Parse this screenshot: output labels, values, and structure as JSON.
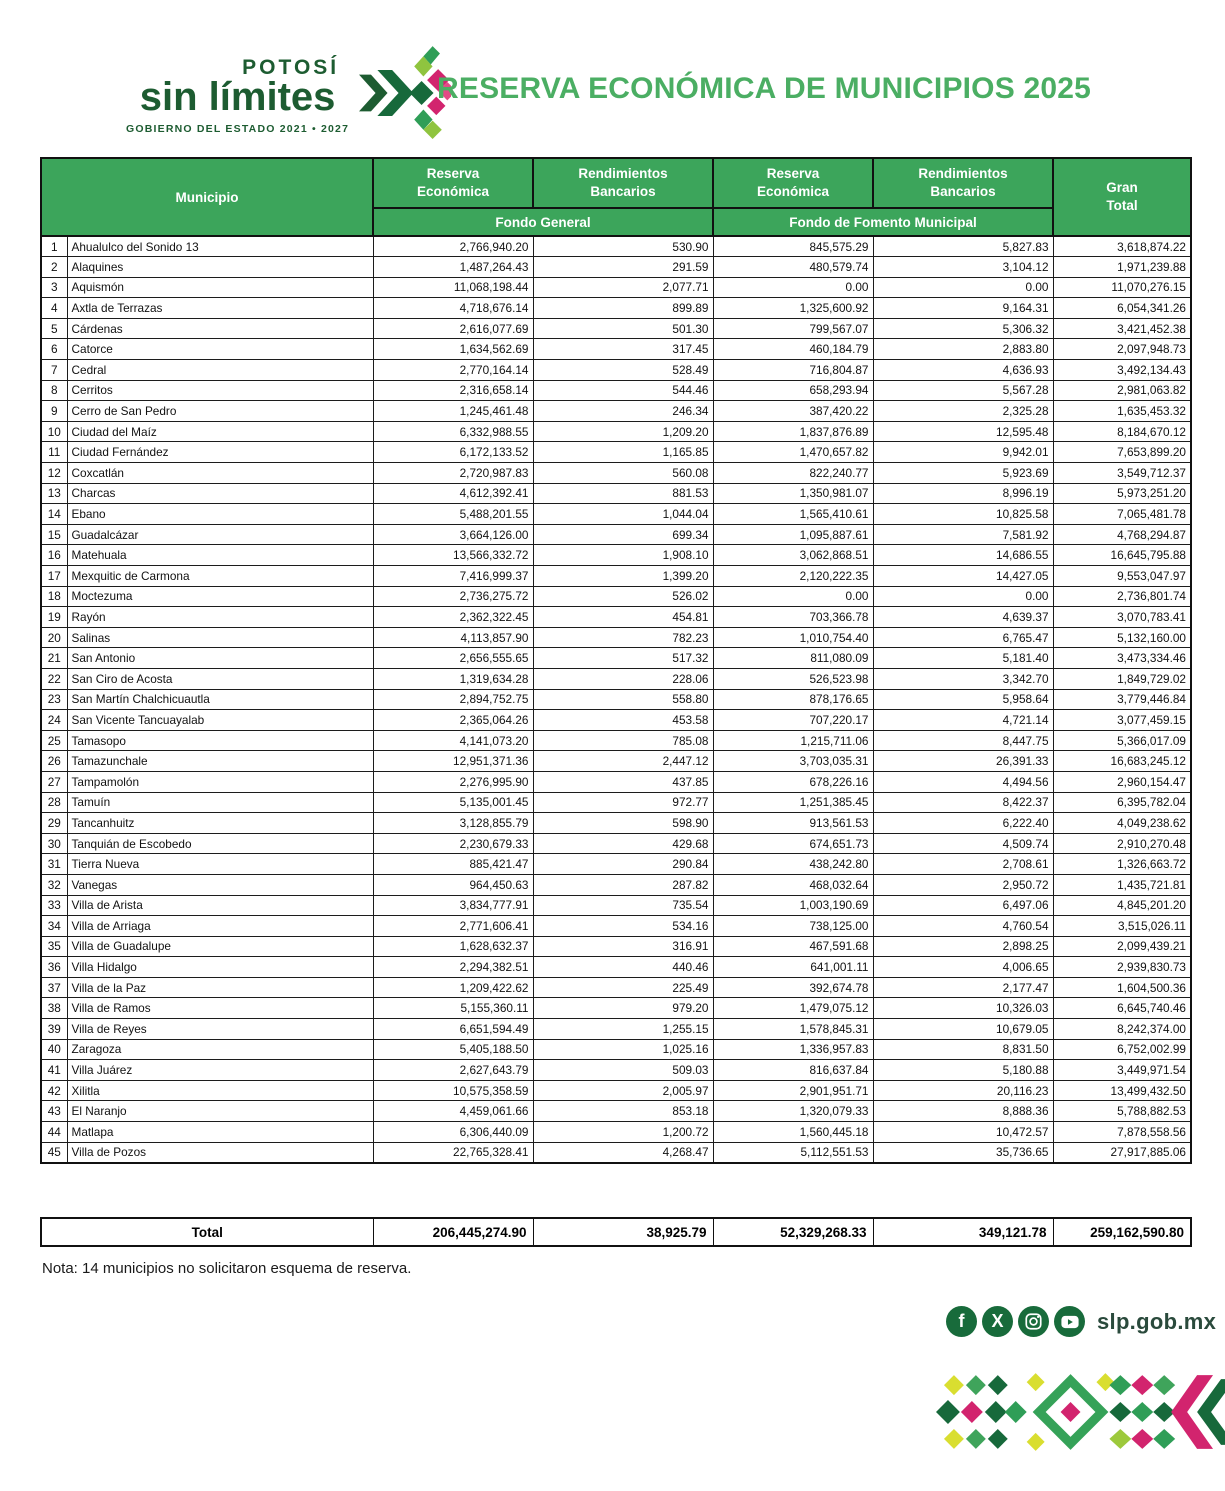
{
  "header": {
    "logo": {
      "line1": "POTOSÍ",
      "line2": "sin límites",
      "line3": "GOBIERNO DEL ESTADO 2021 • 2027"
    },
    "title": "RESERVA ECONÓMICA DE MUNICIPIOS 2025"
  },
  "table": {
    "headers": {
      "municipio": "Municipio",
      "reserva": [
        "Reserva",
        "Económica"
      ],
      "rendimientos": [
        "Rendimientos",
        "Bancarios"
      ],
      "gran_total": [
        "Gran",
        "Total"
      ],
      "fondo_general": "Fondo General",
      "fondo_fomento": "Fondo de Fomento Municipal"
    },
    "rows": [
      {
        "n": "1",
        "municipio": "Ahualulco del Sonido 13",
        "valores": [
          "2,766,940.20",
          "530.90",
          "845,575.29",
          "5,827.83",
          "3,618,874.22"
        ]
      },
      {
        "n": "2",
        "municipio": "Alaquines",
        "valores": [
          "1,487,264.43",
          "291.59",
          "480,579.74",
          "3,104.12",
          "1,971,239.88"
        ]
      },
      {
        "n": "3",
        "municipio": "Aquismón",
        "valores": [
          "11,068,198.44",
          "2,077.71",
          "0.00",
          "0.00",
          "11,070,276.15"
        ]
      },
      {
        "n": "4",
        "municipio": "Axtla de Terrazas",
        "valores": [
          "4,718,676.14",
          "899.89",
          "1,325,600.92",
          "9,164.31",
          "6,054,341.26"
        ]
      },
      {
        "n": "5",
        "municipio": "Cárdenas",
        "valores": [
          "2,616,077.69",
          "501.30",
          "799,567.07",
          "5,306.32",
          "3,421,452.38"
        ]
      },
      {
        "n": "6",
        "municipio": "Catorce",
        "valores": [
          "1,634,562.69",
          "317.45",
          "460,184.79",
          "2,883.80",
          "2,097,948.73"
        ]
      },
      {
        "n": "7",
        "municipio": "Cedral",
        "valores": [
          "2,770,164.14",
          "528.49",
          "716,804.87",
          "4,636.93",
          "3,492,134.43"
        ]
      },
      {
        "n": "8",
        "municipio": "Cerritos",
        "valores": [
          "2,316,658.14",
          "544.46",
          "658,293.94",
          "5,567.28",
          "2,981,063.82"
        ]
      },
      {
        "n": "9",
        "municipio": "Cerro de San Pedro",
        "valores": [
          "1,245,461.48",
          "246.34",
          "387,420.22",
          "2,325.28",
          "1,635,453.32"
        ]
      },
      {
        "n": "10",
        "municipio": "Ciudad del Maíz",
        "valores": [
          "6,332,988.55",
          "1,209.20",
          "1,837,876.89",
          "12,595.48",
          "8,184,670.12"
        ]
      },
      {
        "n": "11",
        "municipio": "Ciudad Fernández",
        "valores": [
          "6,172,133.52",
          "1,165.85",
          "1,470,657.82",
          "9,942.01",
          "7,653,899.20"
        ]
      },
      {
        "n": "12",
        "municipio": "Coxcatlán",
        "valores": [
          "2,720,987.83",
          "560.08",
          "822,240.77",
          "5,923.69",
          "3,549,712.37"
        ]
      },
      {
        "n": "13",
        "municipio": "Charcas",
        "valores": [
          "4,612,392.41",
          "881.53",
          "1,350,981.07",
          "8,996.19",
          "5,973,251.20"
        ]
      },
      {
        "n": "14",
        "municipio": "Ebano",
        "valores": [
          "5,488,201.55",
          "1,044.04",
          "1,565,410.61",
          "10,825.58",
          "7,065,481.78"
        ]
      },
      {
        "n": "15",
        "municipio": "Guadalcázar",
        "valores": [
          "3,664,126.00",
          "699.34",
          "1,095,887.61",
          "7,581.92",
          "4,768,294.87"
        ]
      },
      {
        "n": "16",
        "municipio": "Matehuala",
        "valores": [
          "13,566,332.72",
          "1,908.10",
          "3,062,868.51",
          "14,686.55",
          "16,645,795.88"
        ]
      },
      {
        "n": "17",
        "municipio": "Mexquitic de Carmona",
        "valores": [
          "7,416,999.37",
          "1,399.20",
          "2,120,222.35",
          "14,427.05",
          "9,553,047.97"
        ]
      },
      {
        "n": "18",
        "municipio": "Moctezuma",
        "valores": [
          "2,736,275.72",
          "526.02",
          "0.00",
          "0.00",
          "2,736,801.74"
        ]
      },
      {
        "n": "19",
        "municipio": "Rayón",
        "valores": [
          "2,362,322.45",
          "454.81",
          "703,366.78",
          "4,639.37",
          "3,070,783.41"
        ]
      },
      {
        "n": "20",
        "municipio": "Salinas",
        "valores": [
          "4,113,857.90",
          "782.23",
          "1,010,754.40",
          "6,765.47",
          "5,132,160.00"
        ]
      },
      {
        "n": "21",
        "municipio": "San Antonio",
        "valores": [
          "2,656,555.65",
          "517.32",
          "811,080.09",
          "5,181.40",
          "3,473,334.46"
        ]
      },
      {
        "n": "22",
        "municipio": "San Ciro de Acosta",
        "valores": [
          "1,319,634.28",
          "228.06",
          "526,523.98",
          "3,342.70",
          "1,849,729.02"
        ]
      },
      {
        "n": "23",
        "municipio": "San Martín Chalchicuautla",
        "valores": [
          "2,894,752.75",
          "558.80",
          "878,176.65",
          "5,958.64",
          "3,779,446.84"
        ]
      },
      {
        "n": "24",
        "municipio": "San Vicente Tancuayalab",
        "valores": [
          "2,365,064.26",
          "453.58",
          "707,220.17",
          "4,721.14",
          "3,077,459.15"
        ]
      },
      {
        "n": "25",
        "municipio": "Tamasopo",
        "valores": [
          "4,141,073.20",
          "785.08",
          "1,215,711.06",
          "8,447.75",
          "5,366,017.09"
        ]
      },
      {
        "n": "26",
        "municipio": "Tamazunchale",
        "valores": [
          "12,951,371.36",
          "2,447.12",
          "3,703,035.31",
          "26,391.33",
          "16,683,245.12"
        ]
      },
      {
        "n": "27",
        "municipio": "Tampamolón",
        "valores": [
          "2,276,995.90",
          "437.85",
          "678,226.16",
          "4,494.56",
          "2,960,154.47"
        ]
      },
      {
        "n": "28",
        "municipio": "Tamuín",
        "valores": [
          "5,135,001.45",
          "972.77",
          "1,251,385.45",
          "8,422.37",
          "6,395,782.04"
        ]
      },
      {
        "n": "29",
        "municipio": "Tancanhuitz",
        "valores": [
          "3,128,855.79",
          "598.90",
          "913,561.53",
          "6,222.40",
          "4,049,238.62"
        ]
      },
      {
        "n": "30",
        "municipio": "Tanquián de Escobedo",
        "valores": [
          "2,230,679.33",
          "429.68",
          "674,651.73",
          "4,509.74",
          "2,910,270.48"
        ]
      },
      {
        "n": "31",
        "municipio": "Tierra Nueva",
        "valores": [
          "885,421.47",
          "290.84",
          "438,242.80",
          "2,708.61",
          "1,326,663.72"
        ]
      },
      {
        "n": "32",
        "municipio": "Vanegas",
        "valores": [
          "964,450.63",
          "287.82",
          "468,032.64",
          "2,950.72",
          "1,435,721.81"
        ]
      },
      {
        "n": "33",
        "municipio": "Villa de Arista",
        "valores": [
          "3,834,777.91",
          "735.54",
          "1,003,190.69",
          "6,497.06",
          "4,845,201.20"
        ]
      },
      {
        "n": "34",
        "municipio": "Villa de Arriaga",
        "valores": [
          "2,771,606.41",
          "534.16",
          "738,125.00",
          "4,760.54",
          "3,515,026.11"
        ]
      },
      {
        "n": "35",
        "municipio": "Villa de Guadalupe",
        "valores": [
          "1,628,632.37",
          "316.91",
          "467,591.68",
          "2,898.25",
          "2,099,439.21"
        ]
      },
      {
        "n": "36",
        "municipio": "Villa Hidalgo",
        "valores": [
          "2,294,382.51",
          "440.46",
          "641,001.11",
          "4,006.65",
          "2,939,830.73"
        ]
      },
      {
        "n": "37",
        "municipio": "Villa de la Paz",
        "valores": [
          "1,209,422.62",
          "225.49",
          "392,674.78",
          "2,177.47",
          "1,604,500.36"
        ]
      },
      {
        "n": "38",
        "municipio": "Villa de Ramos",
        "valores": [
          "5,155,360.11",
          "979.20",
          "1,479,075.12",
          "10,326.03",
          "6,645,740.46"
        ]
      },
      {
        "n": "39",
        "municipio": "Villa de Reyes",
        "valores": [
          "6,651,594.49",
          "1,255.15",
          "1,578,845.31",
          "10,679.05",
          "8,242,374.00"
        ]
      },
      {
        "n": "40",
        "municipio": "Zaragoza",
        "valores": [
          "5,405,188.50",
          "1,025.16",
          "1,336,957.83",
          "8,831.50",
          "6,752,002.99"
        ]
      },
      {
        "n": "41",
        "municipio": "Villa Juárez",
        "valores": [
          "2,627,643.79",
          "509.03",
          "816,637.84",
          "5,180.88",
          "3,449,971.54"
        ]
      },
      {
        "n": "42",
        "municipio": "Xilitla",
        "valores": [
          "10,575,358.59",
          "2,005.97",
          "2,901,951.71",
          "20,116.23",
          "13,499,432.50"
        ]
      },
      {
        "n": "43",
        "municipio": "El Naranjo",
        "valores": [
          "4,459,061.66",
          "853.18",
          "1,320,079.33",
          "8,888.36",
          "5,788,882.53"
        ]
      },
      {
        "n": "44",
        "municipio": "Matlapa",
        "valores": [
          "6,306,440.09",
          "1,200.72",
          "1,560,445.18",
          "10,472.57",
          "7,878,558.56"
        ]
      },
      {
        "n": "45",
        "municipio": "Villa de Pozos",
        "valores": [
          "22,765,328.41",
          "4,268.47",
          "5,112,551.53",
          "35,736.65",
          "27,917,885.06"
        ]
      }
    ],
    "total": {
      "label": "Total",
      "fg_reserva": "206,445,274.90",
      "fg_rend": "38,925.79",
      "ffm_reserva": "52,329,268.33",
      "ffm_rend": "349,121.78",
      "gran_total": "259,162,590.80"
    }
  },
  "note": "Nota: 14 municipios no solicitaron esquema de reserva.",
  "footer": {
    "social_icons": [
      "facebook-icon",
      "x-icon",
      "instagram-icon",
      "youtube-icon"
    ],
    "website": "slp.gob.mx"
  },
  "colors": {
    "header_green": "#3CA55B",
    "title_green": "#4BAE63",
    "logo_dark_green": "#1D5C31",
    "magenta": "#D2246E",
    "lime": "#C9D32B",
    "social_green": "#186B3B"
  }
}
